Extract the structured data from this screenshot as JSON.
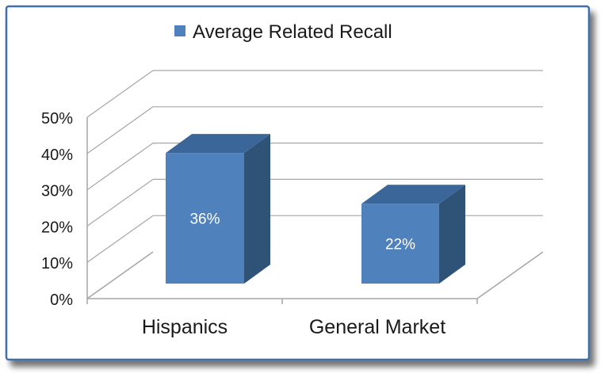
{
  "chart_data": {
    "type": "bar",
    "categories": [
      "Hispanics",
      "General Market"
    ],
    "series": [
      {
        "name": "Average Related Recall",
        "values": [
          36,
          22
        ]
      }
    ],
    "data_labels": [
      "36%",
      "22%"
    ],
    "y_ticks": [
      "0%",
      "10%",
      "20%",
      "30%",
      "40%",
      "50%"
    ],
    "ylim": [
      0,
      50
    ],
    "grid": true,
    "legend_position": "top",
    "style": "3d-column",
    "colors": {
      "bar_front": "#4f81bd",
      "bar_side": "#2f5277",
      "bar_top": "#3b6699",
      "grid": "#a6a6a6",
      "frame_border": "#3f6fa8"
    }
  }
}
